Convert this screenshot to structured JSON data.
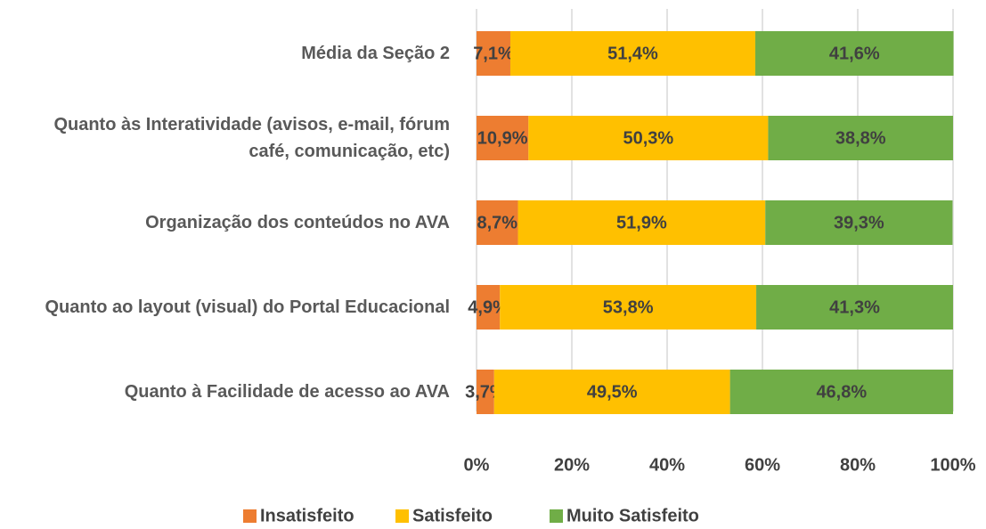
{
  "chart_data": {
    "type": "stacked_bar_horizontal",
    "categories": [
      "Média da Seção 2",
      "Quanto às Interatividade (avisos, e-mail, fórum café, comunicação, etc)",
      "Organização dos conteúdos no AVA",
      "Quanto ao layout (visual) do Portal Educacional",
      "Quanto à Facilidade de acesso ao AVA"
    ],
    "series": [
      {
        "name": "Insatisfeito",
        "color": "#ED7D31",
        "values": [
          7.1,
          10.9,
          8.7,
          4.9,
          3.7
        ],
        "value_labels": [
          "7,1%",
          "10,9%",
          "8,7%",
          "4,9%",
          "3,7%"
        ]
      },
      {
        "name": "Satisfeito",
        "color": "#FFC000",
        "values": [
          51.4,
          50.3,
          51.9,
          53.8,
          49.5
        ],
        "value_labels": [
          "51,4%",
          "50,3%",
          "51,9%",
          "53,8%",
          "49,5%"
        ]
      },
      {
        "name": "Muito Satisfeito",
        "color": "#70AD47",
        "values": [
          41.6,
          38.8,
          39.3,
          41.3,
          46.8
        ],
        "value_labels": [
          "41,6%",
          "38,8%",
          "39,3%",
          "41,3%",
          "46,8%"
        ]
      }
    ],
    "xlim": [
      0,
      100
    ],
    "xticks": [
      {
        "value": 0,
        "label": "0%"
      },
      {
        "value": 20,
        "label": "20%"
      },
      {
        "value": 40,
        "label": "40%"
      },
      {
        "value": 60,
        "label": "60%"
      },
      {
        "value": 80,
        "label": "80%"
      },
      {
        "value": 100,
        "label": "100%"
      }
    ],
    "grid": true,
    "legend": "bottom"
  }
}
